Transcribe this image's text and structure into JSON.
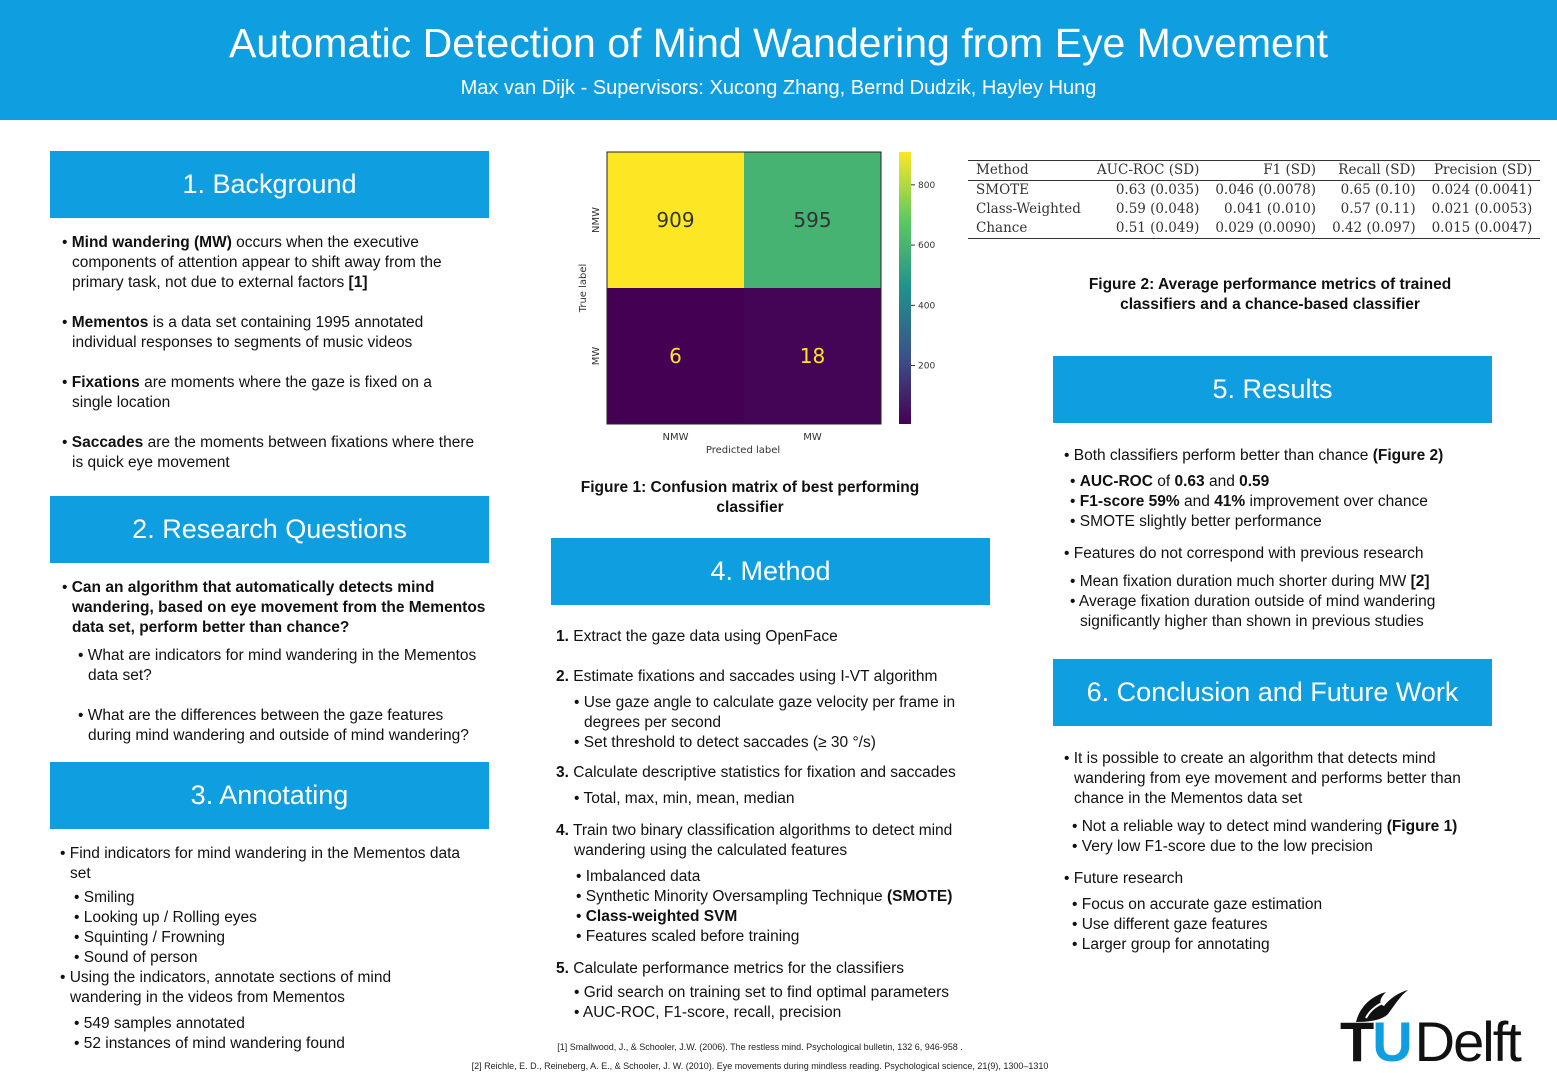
{
  "header": {
    "title": "Automatic Detection of Mind Wandering from Eye Movement",
    "subtitle": "Max van Dijk - Supervisors: Xucong Zhang, Bernd Dudzik, Hayley Hung"
  },
  "colors": {
    "accent": "#0f9ee0"
  },
  "background": {
    "heading": "1. Background",
    "items": [
      {
        "bold": "Mind wandering (MW)",
        "text": " occurs when the executive components of attention appear to shift away from the primary task, not due to external factors ",
        "ref": "[1]"
      },
      {
        "bold": "Mementos",
        "text": " is a data set containing 1995 annotated individual responses to segments of music videos"
      },
      {
        "bold": "Fixations",
        "text": " are moments where the gaze is fixed on a single location"
      },
      {
        "bold": "Saccades",
        "text": " are the moments between fixations where there is quick eye movement"
      }
    ]
  },
  "research": {
    "heading": "2. Research Questions",
    "main": "Can an algorithm that automatically detects mind wandering, based on eye movement from the Mementos data set, perform better than chance?",
    "subs": [
      "What are indicators for mind wandering in the Mementos data set?",
      "What are the differences between the gaze features during mind wandering and outside of mind wandering?"
    ]
  },
  "annotating": {
    "heading": "3. Annotating",
    "item1": "Find indicators for mind wandering in the Mementos data set",
    "indicators": [
      "Smiling",
      "Looking up / Rolling eyes",
      "Squinting / Frowning",
      "Sound of person"
    ],
    "item2": "Using the indicators, annotate sections of mind wandering in the videos from Mementos",
    "facts": [
      "549 samples annotated",
      "52 instances of mind wandering found"
    ]
  },
  "chart_data": {
    "type": "heatmap",
    "x_categories": [
      "NMW",
      "MW"
    ],
    "y_categories": [
      "NMW",
      "MW"
    ],
    "values": [
      [
        909,
        595
      ],
      [
        6,
        18
      ]
    ],
    "xlabel": "Predicted label",
    "ylabel": "True label",
    "colorbar_ticks": [
      200,
      400,
      600,
      800
    ],
    "colorbar_range": [
      6,
      909
    ],
    "colormap": "viridis"
  },
  "figure1_caption": "Figure 1: Confusion matrix of best performing classifier",
  "method": {
    "heading": "4. Method",
    "steps": [
      {
        "num": "1.",
        "text": "Extract the gaze data using OpenFace",
        "subs": []
      },
      {
        "num": "2.",
        "text": "Estimate fixations and saccades using I-VT algorithm",
        "subs": [
          "Use gaze angle to calculate gaze velocity per frame in degrees per second",
          "Set threshold to detect saccades (≥ 30 °/s)"
        ]
      },
      {
        "num": "3.",
        "text": "Calculate descriptive statistics for fixation and saccades",
        "subs": [
          "Total, max, min, mean, median"
        ]
      },
      {
        "num": "4.",
        "text": "Train two binary classification algorithms to detect mind wandering using the calculated features",
        "subs": [
          "Imbalanced data"
        ]
      },
      {
        "num": "5.",
        "text": "Calculate performance metrics for the classifiers",
        "subs": [
          "Grid search on training set to find optimal parameters",
          "AUC-ROC, F1-score, recall, precision"
        ]
      }
    ],
    "step4_smote_prefix": "Synthetic Minority Oversampling Technique ",
    "step4_smote_bold": "(SMOTE)",
    "step4_svm": "Class-weighted SVM",
    "step4_scaled": "Features scaled before training"
  },
  "metrics_table": {
    "headers": [
      "Method",
      "AUC-ROC (SD)",
      "F1 (SD)",
      "Recall (SD)",
      "Precision (SD)"
    ],
    "rows": [
      [
        "SMOTE",
        "0.63 (0.035)",
        "0.046 (0.0078)",
        "0.65 (0.10)",
        "0.024 (0.0041)"
      ],
      [
        "Class-Weighted",
        "0.59 (0.048)",
        "0.041 (0.010)",
        "0.57 (0.11)",
        "0.021 (0.0053)"
      ],
      [
        "Chance",
        "0.51 (0.049)",
        "0.029 (0.0090)",
        "0.42 (0.097)",
        "0.015 (0.0047)"
      ]
    ]
  },
  "figure2_caption": "Figure 2: Average performance metrics of trained classifiers and a chance-based classifier",
  "results": {
    "heading": "5. Results",
    "b1_text": "Both classifiers perform better than chance ",
    "b1_bold": "(Figure 2)",
    "auc_label": "AUC-ROC",
    "auc_of": " of ",
    "auc_v1": "0.63",
    "auc_and": " and ",
    "auc_v2": "0.59",
    "f1_label": "F1-score",
    "f1_v1": "59%",
    "f1_and": " and ",
    "f1_v2": "41%",
    "f1_rest": " improvement over chance",
    "smote": "SMOTE slightly better performance",
    "b2": "Features do not correspond with previous research",
    "mean_fix": "Mean fixation duration much shorter during MW ",
    "mean_ref": "[2]",
    "avg_fix": "Average fixation duration outside of mind wandering significantly higher than shown in previous studies"
  },
  "conclusion": {
    "heading": "6. Conclusion and Future Work",
    "b1": "It is possible to create an algorithm that detects mind wandering from eye movement and performs better than chance in the Mementos data set",
    "s1_text": "Not a reliable way to detect mind wandering ",
    "s1_bold": "(Figure 1)",
    "s2": "Very low F1-score due to the low precision",
    "b2": "Future research",
    "future": [
      "Focus on accurate gaze estimation",
      "Use different gaze features",
      "Larger group for annotating"
    ]
  },
  "references": [
    "[1] Smallwood, J., & Schooler, J.W. (2006). The restless mind. Psychological bulletin, 132 6, 946-958 .",
    "[2] Reichle, E. D., Reineberg, A. E., & Schooler, J. W. (2010). Eye movements during mindless reading. Psychological science, 21(9), 1300–1310"
  ],
  "logo": {
    "t": "T",
    "u": "U",
    "delft": "Delft"
  }
}
